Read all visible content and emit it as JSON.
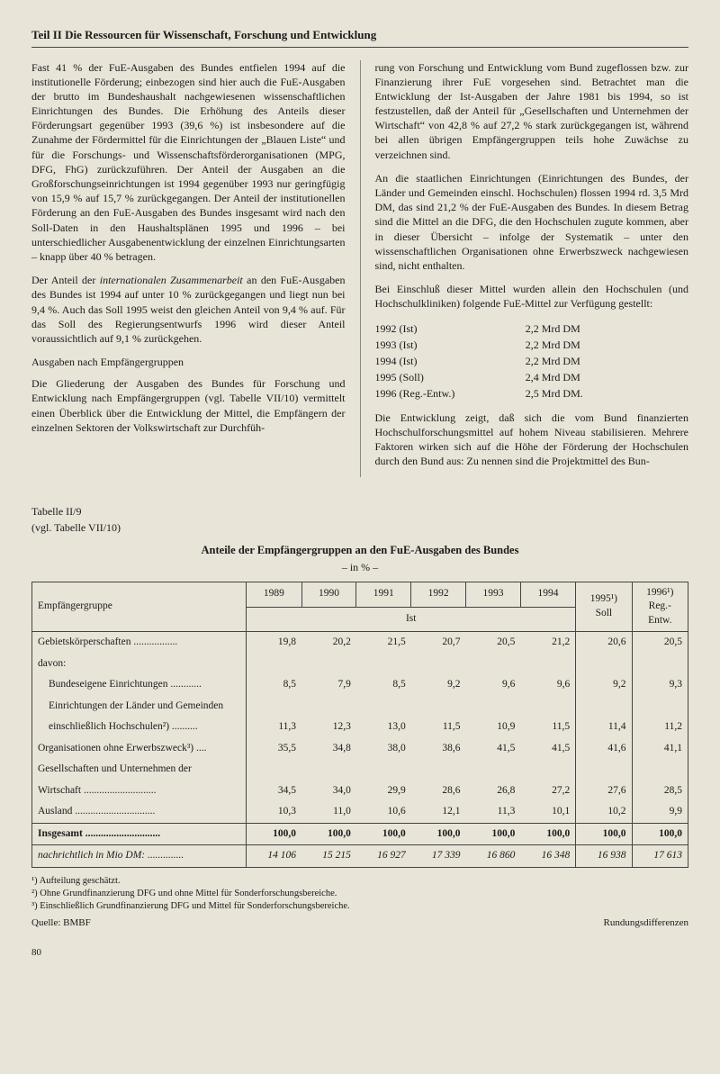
{
  "header": "Teil II  Die Ressourcen für Wissenschaft, Forschung und Entwicklung",
  "left": {
    "p1": "Fast 41 % der FuE-Ausgaben des Bundes entfielen 1994 auf die institutionelle Förderung; einbezogen sind hier auch die FuE-Ausgaben der brutto im Bundeshaushalt nachgewiesenen wissenschaftlichen Einrichtungen des Bundes. Die Erhöhung des Anteils dieser Förderungsart gegenüber 1993 (39,6 %) ist insbesondere auf die Zunahme der Fördermittel für die Einrichtungen der „Blauen Liste“ und für die Forschungs- und Wissenschaftsförderorganisationen (MPG, DFG, FhG) zurückzuführen. Der Anteil der Ausgaben an die Großforschungseinrichtungen ist 1994 gegenüber 1993 nur geringfügig von 15,9 % auf 15,7 % zurückgegangen. Der Anteil der institutionellen Förderung an den FuE-Ausgaben des Bundes insgesamt wird nach den Soll-Daten in den Haushaltsplänen 1995 und 1996 – bei unterschiedlicher Ausgabenentwicklung der einzelnen Einrichtungsarten – knapp über 40 % betragen.",
    "p2a": "Der Anteil der ",
    "p2i": "internationalen Zusammenarbeit",
    "p2b": " an den FuE-Ausgaben des Bundes ist 1994 auf unter 10 % zurückgegangen und liegt nun bei 9,4 %. Auch das Soll 1995 weist den gleichen Anteil von 9,4 % auf. Für das Soll des Regierungsentwurfs 1996 wird dieser Anteil voraussichtlich auf 9,1 % zurückgehen.",
    "subhead": "Ausgaben nach Empfängergruppen",
    "p3": "Die Gliederung der Ausgaben des Bundes für Forschung und Entwicklung nach Empfängergruppen (vgl. Tabelle VII/10) vermittelt einen Überblick über die Entwicklung der Mittel, die Empfängern der einzelnen Sektoren der Volkswirtschaft zur Durchfüh-"
  },
  "right": {
    "p1": "rung von Forschung und Entwicklung vom Bund zugeflossen bzw. zur Finanzierung ihrer FuE vorgesehen sind. Betrachtet man die Entwicklung der Ist-Ausgaben der Jahre 1981 bis 1994, so ist festzustellen, daß der Anteil für „Gesellschaften und Unternehmen der Wirtschaft“ von 42,8 % auf 27,2 % stark zurückgegangen ist, während bei allen übrigen Empfängergruppen teils hohe Zuwächse zu verzeichnen sind.",
    "p2": "An die staatlichen Einrichtungen (Einrichtungen des Bundes, der Länder und Gemeinden einschl. Hochschulen) flossen 1994 rd. 3,5 Mrd DM, das sind 21,2 % der FuE-Ausgaben des Bundes. In diesem Betrag sind die Mittel an die DFG, die den Hochschulen zugute kommen, aber in dieser Übersicht – infolge der Systematik – unter den wissenschaftlichen Organisationen ohne Erwerbszweck nachgewiesen sind, nicht enthalten.",
    "p3": "Bei Einschluß dieser Mittel wurden allein den Hochschulen (und Hochschulkliniken) folgende FuE-Mittel zur Verfügung gestellt:",
    "data": [
      {
        "label": "1992 (Ist)",
        "value": "2,2 Mrd DM"
      },
      {
        "label": "1993 (Ist)",
        "value": "2,2 Mrd DM"
      },
      {
        "label": "1994 (Ist)",
        "value": "2,2 Mrd DM"
      },
      {
        "label": "1995 (Soll)",
        "value": "2,4 Mrd DM"
      },
      {
        "label": "1996 (Reg.-Entw.)",
        "value": "2,5 Mrd DM."
      }
    ],
    "p4": "Die Entwicklung zeigt, daß sich die vom Bund finanzierten Hochschulforschungsmittel auf hohem Niveau stabilisieren. Mehrere Faktoren wirken sich auf die Höhe der Förderung der Hochschulen durch den Bund aus: Zu nennen sind die Projektmittel des Bun-"
  },
  "tableRef1": "Tabelle II/9",
  "tableRef2": "(vgl. Tabelle VII/10)",
  "tableTitle": "Anteile der Empfängergruppen an den FuE-Ausgaben des Bundes",
  "tableSub": "– in % –",
  "table": {
    "headers": {
      "emp": "Empfängergruppe",
      "years": [
        "1989",
        "1990",
        "1991",
        "1992",
        "1993",
        "1994"
      ],
      "soll": "1995¹)\nSoll",
      "reg": "1996¹)\nReg.-\nEntw.",
      "ist": "Ist"
    },
    "rows": [
      {
        "label": "Gebietskörperschaften",
        "dots": true,
        "class": "",
        "v": [
          "19,8",
          "20,2",
          "21,5",
          "20,7",
          "20,5",
          "21,2",
          "20,6",
          "20,5"
        ]
      },
      {
        "label": "davon:",
        "dots": false,
        "class": "",
        "v": [
          "",
          "",
          "",
          "",
          "",
          "",
          "",
          ""
        ]
      },
      {
        "label": "Bundeseigene Einrichtungen",
        "dots": true,
        "class": "indent",
        "v": [
          "8,5",
          "7,9",
          "8,5",
          "9,2",
          "9,6",
          "9,6",
          "9,2",
          "9,3"
        ]
      },
      {
        "label": "Einrichtungen der Länder und Gemeinden",
        "dots": false,
        "class": "indent",
        "v": [
          "",
          "",
          "",
          "",
          "",
          "",
          "",
          ""
        ]
      },
      {
        "label": "einschließlich Hochschulen²)",
        "dots": true,
        "class": "indent",
        "v": [
          "11,3",
          "12,3",
          "13,0",
          "11,5",
          "10,9",
          "11,5",
          "11,4",
          "11,2"
        ]
      },
      {
        "label": "Organisationen ohne Erwerbszweck³)",
        "dots": true,
        "class": "",
        "v": [
          "35,5",
          "34,8",
          "38,0",
          "38,6",
          "41,5",
          "41,5",
          "41,6",
          "41,1"
        ]
      },
      {
        "label": "Gesellschaften und Unternehmen der",
        "dots": false,
        "class": "",
        "v": [
          "",
          "",
          "",
          "",
          "",
          "",
          "",
          ""
        ]
      },
      {
        "label": "Wirtschaft",
        "dots": true,
        "class": "",
        "v": [
          "34,5",
          "34,0",
          "29,9",
          "28,6",
          "26,8",
          "27,2",
          "27,6",
          "28,5"
        ]
      },
      {
        "label": "Ausland",
        "dots": true,
        "class": "",
        "v": [
          "10,3",
          "11,0",
          "10,6",
          "12,1",
          "11,3",
          "10,1",
          "10,2",
          "9,9"
        ]
      }
    ],
    "insgesamt": {
      "label": "Insgesamt",
      "v": [
        "100,0",
        "100,0",
        "100,0",
        "100,0",
        "100,0",
        "100,0",
        "100,0",
        "100,0"
      ]
    },
    "nachrichtlich": {
      "label": "nachrichtlich in Mio DM:",
      "v": [
        "14 106",
        "15 215",
        "16 927",
        "17 339",
        "16 860",
        "16 348",
        "16 938",
        "17 613"
      ]
    }
  },
  "footnotes": [
    "¹) Aufteilung geschätzt.",
    "²) Ohne Grundfinanzierung DFG und ohne Mittel für Sonderforschungsbereiche.",
    "³) Einschließlich Grundfinanzierung DFG und Mittel für Sonderforschungsbereiche."
  ],
  "source": "Quelle: BMBF",
  "rounding": "Rundungsdifferenzen",
  "pagenum": "80"
}
